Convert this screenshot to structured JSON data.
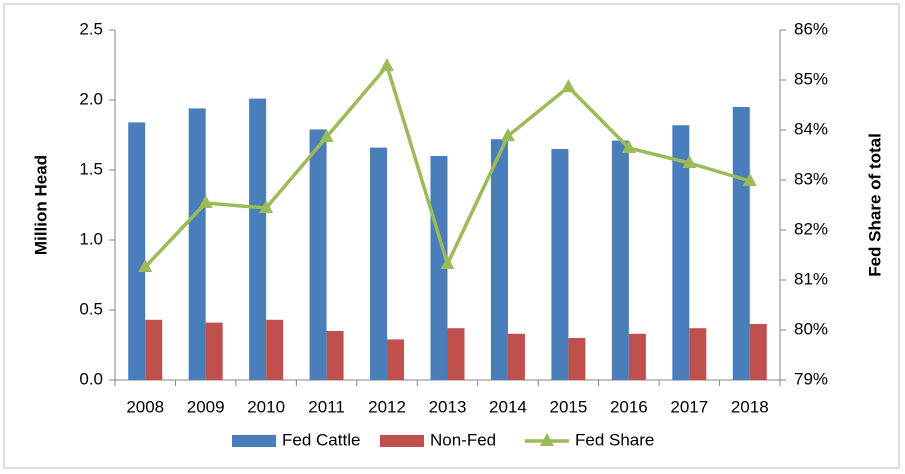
{
  "chart_data": {
    "type": "bar",
    "categories": [
      "2008",
      "2009",
      "2010",
      "2011",
      "2012",
      "2013",
      "2014",
      "2015",
      "2016",
      "2017",
      "2018"
    ],
    "series": [
      {
        "name": "Fed Cattle",
        "color": "#4a7ebb",
        "values": [
          1.84,
          1.94,
          2.01,
          1.79,
          1.66,
          1.6,
          1.72,
          1.65,
          1.71,
          1.82,
          1.95
        ]
      },
      {
        "name": "Non-Fed",
        "color": "#c0504d",
        "values": [
          0.43,
          0.41,
          0.43,
          0.35,
          0.29,
          0.37,
          0.33,
          0.3,
          0.33,
          0.37,
          0.4
        ]
      },
      {
        "name": "Fed Share",
        "type": "line",
        "axis": "y2",
        "color": "#9bbb59",
        "values": [
          81.26,
          82.54,
          82.44,
          83.86,
          85.28,
          81.32,
          83.88,
          84.86,
          83.64,
          83.34,
          82.98
        ]
      }
    ],
    "ylabel": "Million Head",
    "y2label": "Fed Share of total",
    "ylim": [
      0,
      2.5
    ],
    "yticks": [
      {
        "value": 0,
        "label": "0.0"
      },
      0.5,
      {
        "value": 1,
        "label": "1.0"
      },
      1.5,
      {
        "value": 2,
        "label": "2.0"
      },
      2.5
    ],
    "y2lim": [
      79,
      86
    ],
    "y2ticks": [
      {
        "value": 79,
        "label": "79%"
      },
      {
        "value": 80,
        "label": "80%"
      },
      {
        "value": 81,
        "label": "81%"
      },
      {
        "value": 82,
        "label": "82%"
      },
      {
        "value": 83,
        "label": "83%"
      },
      {
        "value": 84,
        "label": "84%"
      },
      {
        "value": 85,
        "label": "85%"
      },
      {
        "value": 86,
        "label": "86%"
      }
    ],
    "grid": false,
    "legend": "bottom"
  }
}
